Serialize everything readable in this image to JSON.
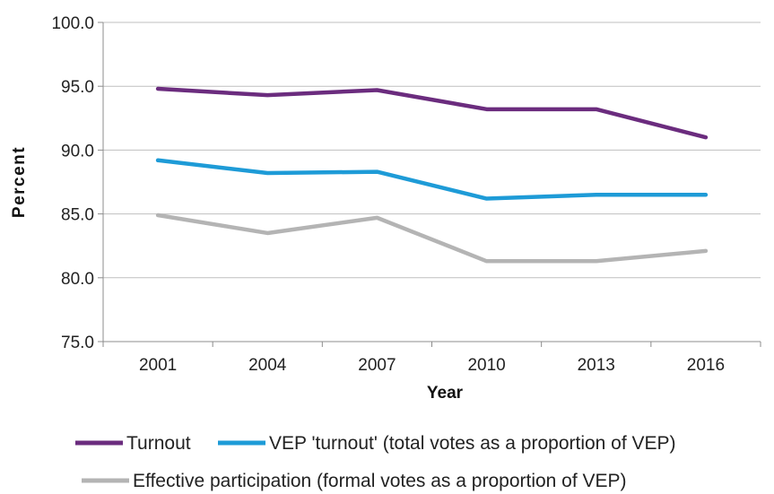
{
  "chart_data": {
    "type": "line",
    "title": "",
    "xlabel": "Year",
    "ylabel": "Percent",
    "categories": [
      "2001",
      "2004",
      "2007",
      "2010",
      "2013",
      "2016"
    ],
    "ylim": [
      75.0,
      100.0
    ],
    "yticks": [
      "75.0",
      "80.0",
      "85.0",
      "90.0",
      "95.0",
      "100.0"
    ],
    "grid": "horizontal",
    "legend_position": "bottom",
    "series": [
      {
        "name": "Turnout",
        "color": "#6b2c7e",
        "values": [
          94.8,
          94.3,
          94.7,
          93.2,
          93.2,
          91.0
        ]
      },
      {
        "name": "VEP 'turnout' (total votes as a proportion of VEP)",
        "color": "#1e9bd7",
        "values": [
          89.2,
          88.2,
          88.3,
          86.2,
          86.5,
          86.5
        ]
      },
      {
        "name": "Effective participation (formal votes as a proportion of VEP)",
        "color": "#b4b4b4",
        "values": [
          84.9,
          83.5,
          84.7,
          81.3,
          81.3,
          82.1
        ]
      }
    ]
  }
}
